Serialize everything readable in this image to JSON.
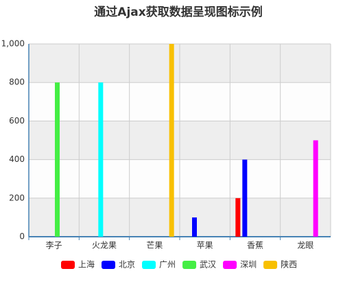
{
  "chart_data": {
    "type": "bar",
    "title": "通过Ajax获取数据呈现图标示例",
    "categories": [
      "李子",
      "火龙果",
      "芒果",
      "苹果",
      "香蕉",
      "龙眼"
    ],
    "series": [
      {
        "name": "上海",
        "color": "#ff0000",
        "values": [
          0,
          0,
          0,
          0,
          200,
          0
        ]
      },
      {
        "name": "北京",
        "color": "#0000ff",
        "values": [
          0,
          0,
          0,
          100,
          400,
          0
        ]
      },
      {
        "name": "广州",
        "color": "#00ffff",
        "values": [
          0,
          800,
          0,
          0,
          0,
          0
        ]
      },
      {
        "name": "武汉",
        "color": "#44ee44",
        "values": [
          800,
          0,
          0,
          0,
          0,
          0
        ]
      },
      {
        "name": "深圳",
        "color": "#ff00ff",
        "values": [
          0,
          0,
          0,
          0,
          0,
          500
        ]
      },
      {
        "name": "陕西",
        "color": "#f8c000",
        "values": [
          0,
          0,
          1000,
          0,
          0,
          0
        ]
      }
    ],
    "ylim": [
      0,
      1000
    ],
    "yticks": [
      0,
      200,
      400,
      600,
      800,
      {
        "value": 1000,
        "label": "1,000"
      }
    ],
    "grid": true
  }
}
